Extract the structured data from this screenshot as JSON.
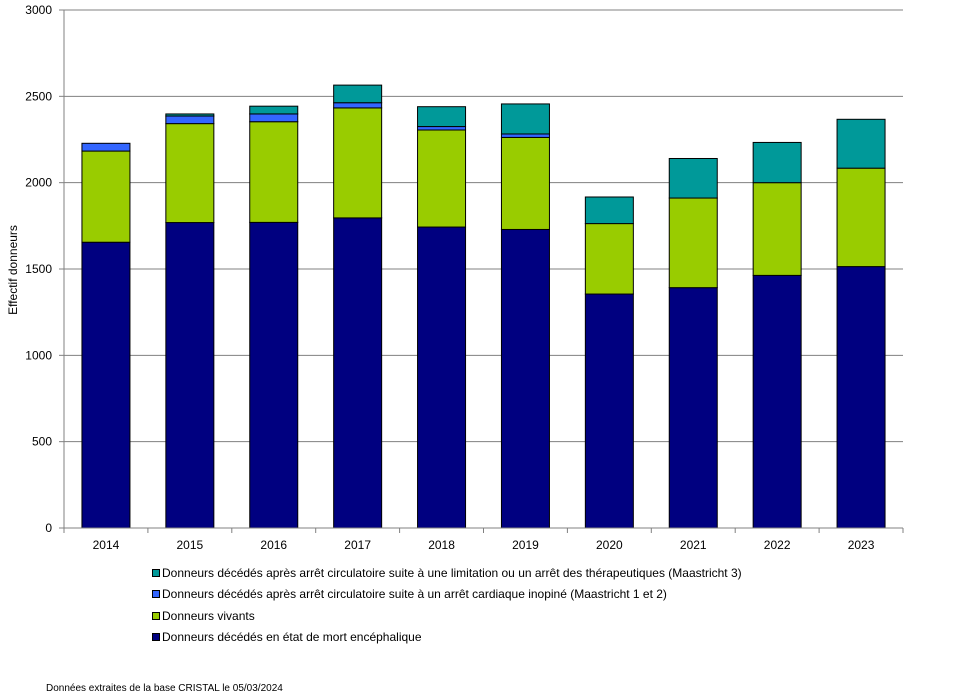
{
  "chart_data": {
    "type": "bar",
    "stacked": true,
    "categories": [
      "2014",
      "2015",
      "2016",
      "2017",
      "2018",
      "2019",
      "2020",
      "2021",
      "2022",
      "2023"
    ],
    "ylabel": "Effectif donneurs",
    "ylim": [
      0,
      3000
    ],
    "yticks": [
      "0",
      "500",
      "1000",
      "1500",
      "2000",
      "2500",
      "3000"
    ],
    "grid": true,
    "legend_position": "bottom",
    "series": [
      {
        "name": "Donneurs décédés en état de mort encéphalique",
        "color": "#000080",
        "values": [
          1655,
          1769,
          1770,
          1796,
          1743,
          1729,
          1355,
          1392,
          1463,
          1514
        ]
      },
      {
        "name": "Donneurs vivants",
        "color": "#99CC00",
        "values": [
          528,
          573,
          583,
          637,
          562,
          533,
          408,
          519,
          537,
          570
        ]
      },
      {
        "name": "Donneurs décédés après arrêt circulatoire suite à un arrêt cardiaque inopiné (Maastricht 1 et 2)",
        "color": "#3366FF",
        "values": [
          45,
          44,
          45,
          30,
          20,
          20,
          0,
          0,
          0,
          0
        ]
      },
      {
        "name": "Donneurs décédés après arrêt circulatoire suite à une limitation ou un arrêt des thérapeutiques (Maastricht 3)",
        "color": "#009999",
        "values": [
          0,
          12,
          45,
          102,
          115,
          174,
          154,
          229,
          233,
          283
        ]
      }
    ]
  },
  "footer": {
    "source": "Données extraites de la base CRISTAL le 05/03/2024"
  }
}
